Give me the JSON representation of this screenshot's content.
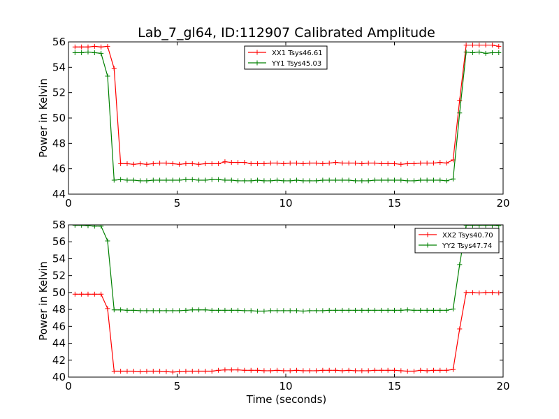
{
  "figure": {
    "title": "Lab_7_gl64, ID:112907 Calibrated Amplitude",
    "xlabel": "Time (seconds)"
  },
  "chart_data": [
    {
      "type": "line",
      "ylabel": "Power in Kelvin",
      "xlim": [
        0,
        20
      ],
      "ylim": [
        44,
        56
      ],
      "xticks": [
        0,
        5,
        10,
        15,
        20
      ],
      "yticks": [
        44,
        46,
        48,
        50,
        52,
        54,
        56
      ],
      "legend_position": "top-center",
      "grid": false,
      "series": [
        {
          "name": "XX1 Tsys46.61",
          "color": "#ff0000",
          "x": [
            0.3,
            0.6,
            0.9,
            1.2,
            1.5,
            1.8,
            2.1,
            2.4,
            2.7,
            3.0,
            3.3,
            3.6,
            3.9,
            4.2,
            4.5,
            4.8,
            5.1,
            5.4,
            5.7,
            6.0,
            6.3,
            6.6,
            6.9,
            7.2,
            7.5,
            7.8,
            8.1,
            8.4,
            8.7,
            9.0,
            9.3,
            9.6,
            9.9,
            10.2,
            10.5,
            10.8,
            11.1,
            11.4,
            11.7,
            12.0,
            12.3,
            12.6,
            12.9,
            13.2,
            13.5,
            13.8,
            14.1,
            14.4,
            14.7,
            15.0,
            15.3,
            15.6,
            15.9,
            16.2,
            16.5,
            16.8,
            17.1,
            17.4,
            17.7,
            18.0,
            18.3,
            18.6,
            18.9,
            19.2,
            19.5,
            19.8
          ],
          "y": [
            55.6,
            55.6,
            55.6,
            55.65,
            55.6,
            55.65,
            53.9,
            46.4,
            46.4,
            46.35,
            46.4,
            46.35,
            46.4,
            46.45,
            46.45,
            46.4,
            46.35,
            46.4,
            46.4,
            46.35,
            46.4,
            46.4,
            46.4,
            46.55,
            46.5,
            46.5,
            46.5,
            46.4,
            46.4,
            46.4,
            46.45,
            46.45,
            46.4,
            46.45,
            46.45,
            46.4,
            46.45,
            46.45,
            46.4,
            46.45,
            46.5,
            46.45,
            46.45,
            46.45,
            46.4,
            46.45,
            46.45,
            46.4,
            46.4,
            46.4,
            46.35,
            46.4,
            46.4,
            46.45,
            46.45,
            46.45,
            46.5,
            46.45,
            46.7,
            51.4,
            55.75,
            55.75,
            55.75,
            55.75,
            55.75,
            55.65
          ]
        },
        {
          "name": "YY1 Tsys45.03",
          "color": "#008000",
          "x": [
            0.3,
            0.6,
            0.9,
            1.2,
            1.5,
            1.8,
            2.1,
            2.4,
            2.7,
            3.0,
            3.3,
            3.6,
            3.9,
            4.2,
            4.5,
            4.8,
            5.1,
            5.4,
            5.7,
            6.0,
            6.3,
            6.6,
            6.9,
            7.2,
            7.5,
            7.8,
            8.1,
            8.4,
            8.7,
            9.0,
            9.3,
            9.6,
            9.9,
            10.2,
            10.5,
            10.8,
            11.1,
            11.4,
            11.7,
            12.0,
            12.3,
            12.6,
            12.9,
            13.2,
            13.5,
            13.8,
            14.1,
            14.4,
            14.7,
            15.0,
            15.3,
            15.6,
            15.9,
            16.2,
            16.5,
            16.8,
            17.1,
            17.4,
            17.7,
            18.0,
            18.3,
            18.6,
            18.9,
            19.2,
            19.5,
            19.8
          ],
          "y": [
            55.15,
            55.15,
            55.2,
            55.15,
            55.1,
            53.3,
            45.1,
            45.15,
            45.1,
            45.1,
            45.05,
            45.05,
            45.1,
            45.1,
            45.1,
            45.1,
            45.1,
            45.15,
            45.15,
            45.1,
            45.1,
            45.15,
            45.15,
            45.1,
            45.1,
            45.05,
            45.05,
            45.05,
            45.1,
            45.05,
            45.05,
            45.1,
            45.05,
            45.05,
            45.1,
            45.05,
            45.05,
            45.05,
            45.1,
            45.1,
            45.1,
            45.1,
            45.1,
            45.05,
            45.05,
            45.05,
            45.1,
            45.1,
            45.1,
            45.1,
            45.1,
            45.05,
            45.05,
            45.1,
            45.1,
            45.1,
            45.1,
            45.05,
            45.2,
            50.4,
            55.2,
            55.15,
            55.2,
            55.1,
            55.15,
            55.15
          ]
        }
      ]
    },
    {
      "type": "line",
      "ylabel": "Power in Kelvin",
      "xlabel": "Time (seconds)",
      "xlim": [
        0,
        20
      ],
      "ylim": [
        40,
        58
      ],
      "xticks": [
        0,
        5,
        10,
        15,
        20
      ],
      "yticks": [
        40,
        42,
        44,
        46,
        48,
        50,
        52,
        54,
        56,
        58
      ],
      "legend_position": "top-right",
      "grid": false,
      "series": [
        {
          "name": "XX2 Tsys40.70",
          "color": "#ff0000",
          "x": [
            0.3,
            0.6,
            0.9,
            1.2,
            1.5,
            1.8,
            2.1,
            2.4,
            2.7,
            3.0,
            3.3,
            3.6,
            3.9,
            4.2,
            4.5,
            4.8,
            5.1,
            5.4,
            5.7,
            6.0,
            6.3,
            6.6,
            6.9,
            7.2,
            7.5,
            7.8,
            8.1,
            8.4,
            8.7,
            9.0,
            9.3,
            9.6,
            9.9,
            10.2,
            10.5,
            10.8,
            11.1,
            11.4,
            11.7,
            12.0,
            12.3,
            12.6,
            12.9,
            13.2,
            13.5,
            13.8,
            14.1,
            14.4,
            14.7,
            15.0,
            15.3,
            15.6,
            15.9,
            16.2,
            16.5,
            16.8,
            17.1,
            17.4,
            17.7,
            18.0,
            18.3,
            18.6,
            18.9,
            19.2,
            19.5,
            19.8
          ],
          "y": [
            49.8,
            49.8,
            49.8,
            49.8,
            49.8,
            48.1,
            40.7,
            40.7,
            40.7,
            40.7,
            40.65,
            40.7,
            40.7,
            40.7,
            40.65,
            40.6,
            40.65,
            40.7,
            40.7,
            40.7,
            40.7,
            40.7,
            40.8,
            40.85,
            40.85,
            40.85,
            40.8,
            40.8,
            40.8,
            40.75,
            40.75,
            40.8,
            40.75,
            40.75,
            40.8,
            40.75,
            40.75,
            40.75,
            40.8,
            40.8,
            40.8,
            40.75,
            40.8,
            40.75,
            40.75,
            40.75,
            40.8,
            40.8,
            40.8,
            40.8,
            40.75,
            40.7,
            40.7,
            40.8,
            40.75,
            40.8,
            40.8,
            40.8,
            40.9,
            45.7,
            50.0,
            50.0,
            49.95,
            50.0,
            50.0,
            49.95
          ]
        },
        {
          "name": "YY2 Tsys47.74",
          "color": "#008000",
          "x": [
            0.3,
            0.6,
            0.9,
            1.2,
            1.5,
            1.8,
            2.1,
            2.4,
            2.7,
            3.0,
            3.3,
            3.6,
            3.9,
            4.2,
            4.5,
            4.8,
            5.1,
            5.4,
            5.7,
            6.0,
            6.3,
            6.6,
            6.9,
            7.2,
            7.5,
            7.8,
            8.1,
            8.4,
            8.7,
            9.0,
            9.3,
            9.6,
            9.9,
            10.2,
            10.5,
            10.8,
            11.1,
            11.4,
            11.7,
            12.0,
            12.3,
            12.6,
            12.9,
            13.2,
            13.5,
            13.8,
            14.1,
            14.4,
            14.7,
            15.0,
            15.3,
            15.6,
            15.9,
            16.2,
            16.5,
            16.8,
            17.1,
            17.4,
            17.7,
            18.0,
            18.3,
            18.6,
            18.9,
            19.2,
            19.5,
            19.8
          ],
          "y": [
            57.95,
            57.95,
            57.9,
            57.85,
            57.85,
            56.1,
            47.95,
            47.95,
            47.9,
            47.9,
            47.85,
            47.85,
            47.85,
            47.85,
            47.85,
            47.85,
            47.85,
            47.9,
            47.95,
            47.95,
            47.95,
            47.9,
            47.9,
            47.9,
            47.9,
            47.9,
            47.85,
            47.85,
            47.8,
            47.8,
            47.85,
            47.85,
            47.85,
            47.85,
            47.85,
            47.8,
            47.85,
            47.85,
            47.85,
            47.9,
            47.9,
            47.9,
            47.9,
            47.9,
            47.9,
            47.9,
            47.9,
            47.9,
            47.9,
            47.9,
            47.9,
            47.95,
            47.9,
            47.9,
            47.9,
            47.9,
            47.9,
            47.9,
            48.05,
            53.3,
            57.95,
            57.95,
            57.95,
            57.95,
            57.95,
            57.9
          ]
        }
      ]
    }
  ]
}
